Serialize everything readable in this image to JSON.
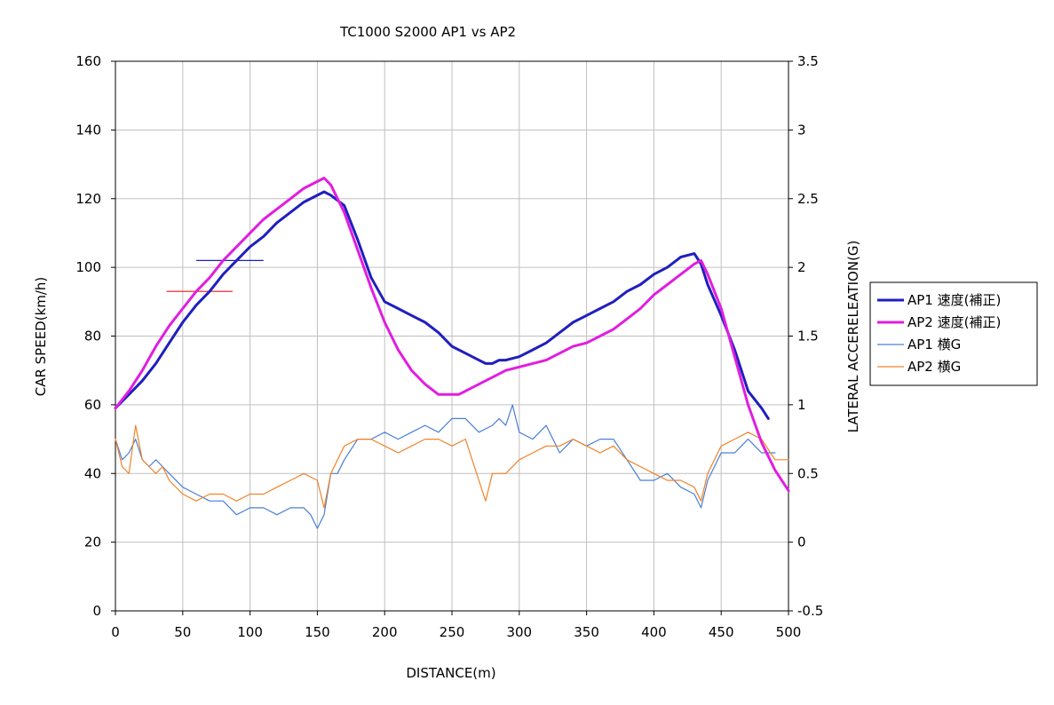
{
  "chart_data": {
    "type": "line",
    "title": "TC1000 S2000 AP1 vs AP2",
    "xlabel": "DISTANCE(m)",
    "ylabel": "CAR SPEED(km/h)",
    "y2label": "LATERAL ACCERELEATION(G)",
    "xlim": [
      0,
      500
    ],
    "ylim": [
      0,
      160
    ],
    "y2lim": [
      -0.5,
      3.5
    ],
    "x_ticks": [
      "0",
      "50",
      "100",
      "150",
      "200",
      "250",
      "300",
      "350",
      "400",
      "450",
      "500"
    ],
    "y_ticks": [
      "0",
      "20",
      "40",
      "60",
      "80",
      "100",
      "120",
      "140",
      "160"
    ],
    "y2_ticks": [
      "-0.5",
      "0",
      "0.5",
      "1",
      "1.5",
      "2",
      "2.5",
      "3",
      "3.5"
    ],
    "grid": true,
    "legend_position": "right",
    "series": [
      {
        "name": "AP1 速度(補正)",
        "axis": "left",
        "color": "#1f1fbf",
        "x": [
          0,
          10,
          20,
          30,
          40,
          50,
          60,
          70,
          80,
          90,
          100,
          110,
          120,
          130,
          140,
          150,
          155,
          160,
          170,
          180,
          190,
          200,
          210,
          220,
          230,
          240,
          250,
          260,
          270,
          275,
          280,
          285,
          290,
          300,
          310,
          320,
          330,
          340,
          350,
          360,
          370,
          380,
          390,
          400,
          410,
          420,
          430,
          435,
          440,
          450,
          460,
          470,
          480,
          485
        ],
        "y": [
          59,
          63,
          67,
          72,
          78,
          84,
          89,
          93,
          98,
          102,
          106,
          109,
          113,
          116,
          119,
          121,
          122,
          121,
          118,
          108,
          97,
          90,
          88,
          86,
          84,
          81,
          77,
          75,
          73,
          72,
          72,
          73,
          73,
          74,
          76,
          78,
          81,
          84,
          86,
          88,
          90,
          93,
          95,
          98,
          100,
          103,
          104,
          101,
          95,
          86,
          76,
          64,
          59,
          56
        ]
      },
      {
        "name": "AP2 速度(補正)",
        "axis": "left",
        "color": "#e01ee0",
        "x": [
          0,
          10,
          20,
          30,
          40,
          50,
          60,
          70,
          80,
          90,
          100,
          110,
          120,
          130,
          140,
          150,
          155,
          160,
          170,
          180,
          190,
          200,
          210,
          220,
          230,
          240,
          245,
          250,
          255,
          260,
          270,
          280,
          290,
          300,
          310,
          320,
          330,
          340,
          350,
          360,
          370,
          380,
          390,
          400,
          410,
          420,
          430,
          435,
          440,
          450,
          460,
          470,
          480,
          490,
          500
        ],
        "y": [
          59,
          64,
          70,
          77,
          83,
          88,
          93,
          97,
          102,
          106,
          110,
          114,
          117,
          120,
          123,
          125,
          126,
          124,
          116,
          105,
          94,
          84,
          76,
          70,
          66,
          63,
          63,
          63,
          63,
          64,
          66,
          68,
          70,
          71,
          72,
          73,
          75,
          77,
          78,
          80,
          82,
          85,
          88,
          92,
          95,
          98,
          101,
          102,
          98,
          88,
          74,
          60,
          49,
          41,
          35
        ]
      },
      {
        "name": "AP1 横G",
        "axis": "right",
        "color": "#4a7fd6",
        "x": [
          0,
          5,
          10,
          15,
          20,
          25,
          30,
          35,
          40,
          50,
          60,
          70,
          80,
          90,
          100,
          110,
          120,
          130,
          140,
          145,
          150,
          155,
          160,
          165,
          170,
          180,
          190,
          200,
          210,
          220,
          230,
          240,
          250,
          260,
          270,
          280,
          285,
          290,
          295,
          300,
          310,
          320,
          330,
          340,
          350,
          360,
          370,
          380,
          390,
          400,
          410,
          420,
          430,
          435,
          440,
          450,
          460,
          470,
          480,
          490
        ],
        "y": [
          0.75,
          0.6,
          0.65,
          0.75,
          0.6,
          0.55,
          0.6,
          0.55,
          0.5,
          0.4,
          0.35,
          0.3,
          0.3,
          0.2,
          0.25,
          0.25,
          0.2,
          0.25,
          0.25,
          0.2,
          0.1,
          0.2,
          0.5,
          0.5,
          0.6,
          0.75,
          0.75,
          0.8,
          0.75,
          0.8,
          0.85,
          0.8,
          0.9,
          0.9,
          0.8,
          0.85,
          0.9,
          0.85,
          1.0,
          0.8,
          0.75,
          0.85,
          0.65,
          0.75,
          0.7,
          0.75,
          0.75,
          0.6,
          0.45,
          0.45,
          0.5,
          0.4,
          0.35,
          0.25,
          0.45,
          0.65,
          0.65,
          0.75,
          0.65,
          0.65
        ]
      },
      {
        "name": "AP2 横G",
        "axis": "right",
        "color": "#f0832a",
        "x": [
          0,
          5,
          10,
          15,
          20,
          25,
          30,
          35,
          40,
          50,
          60,
          70,
          80,
          90,
          100,
          110,
          120,
          130,
          140,
          150,
          155,
          160,
          170,
          180,
          190,
          200,
          210,
          220,
          230,
          240,
          250,
          260,
          270,
          275,
          280,
          290,
          300,
          310,
          320,
          330,
          340,
          350,
          360,
          370,
          380,
          390,
          400,
          410,
          420,
          430,
          435,
          440,
          450,
          460,
          470,
          480,
          490,
          500
        ],
        "y": [
          0.75,
          0.55,
          0.5,
          0.85,
          0.6,
          0.55,
          0.5,
          0.55,
          0.45,
          0.35,
          0.3,
          0.35,
          0.35,
          0.3,
          0.35,
          0.35,
          0.4,
          0.45,
          0.5,
          0.45,
          0.25,
          0.5,
          0.7,
          0.75,
          0.75,
          0.7,
          0.65,
          0.7,
          0.75,
          0.75,
          0.7,
          0.75,
          0.45,
          0.3,
          0.5,
          0.5,
          0.6,
          0.65,
          0.7,
          0.7,
          0.75,
          0.7,
          0.65,
          0.7,
          0.6,
          0.55,
          0.5,
          0.45,
          0.45,
          0.4,
          0.3,
          0.5,
          0.7,
          0.75,
          0.8,
          0.75,
          0.6,
          0.6
        ]
      }
    ],
    "reference_lines": [
      {
        "series": "AP1",
        "color": "#1f1fbf",
        "x0": 60,
        "x1": 110,
        "y": 102
      },
      {
        "series": "AP2",
        "color": "#e84040",
        "x0": 38,
        "x1": 87,
        "y": 93
      }
    ]
  },
  "legend": [
    {
      "label": "AP1 速度(補正)",
      "color": "#1f1fbf",
      "width": 3
    },
    {
      "label": "AP2 速度(補正)",
      "color": "#e01ee0",
      "width": 3
    },
    {
      "label": "AP1 横G",
      "color": "#4a7fd6",
      "width": 1.2
    },
    {
      "label": "AP2 横G",
      "color": "#f0832a",
      "width": 1.2
    }
  ]
}
